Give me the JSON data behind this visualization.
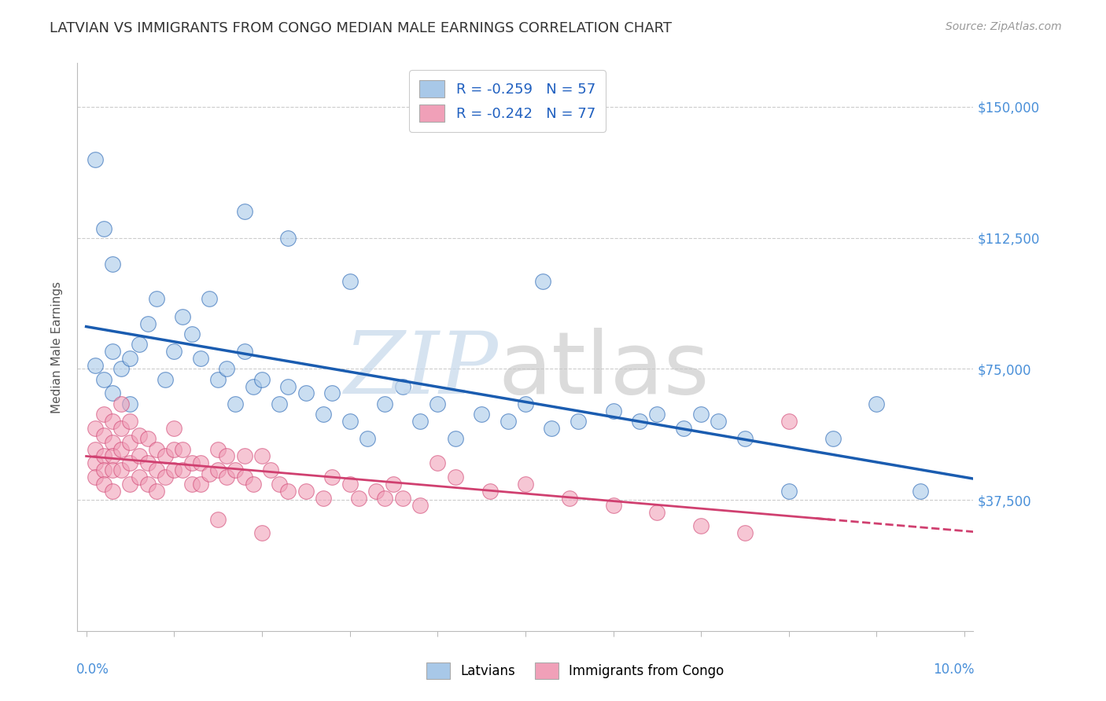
{
  "title": "LATVIAN VS IMMIGRANTS FROM CONGO MEDIAN MALE EARNINGS CORRELATION CHART",
  "source": "Source: ZipAtlas.com",
  "ylabel": "Median Male Earnings",
  "ylim": [
    0,
    162500
  ],
  "xlim": [
    0.0,
    0.101
  ],
  "legend_latvians": "R = -0.259   N = 57",
  "legend_congo": "R = -0.242   N = 77",
  "color_latvian": "#a8c8e8",
  "color_congo": "#f0a0b8",
  "color_latvian_line": "#1a5cb0",
  "color_congo_line": "#d04070",
  "ytick_vals": [
    0,
    37500,
    75000,
    112500,
    150000
  ],
  "ytick_labels": [
    "",
    "$37,500",
    "$75,000",
    "$112,500",
    "$150,000"
  ],
  "lv_x": [
    0.001,
    0.002,
    0.003,
    0.003,
    0.004,
    0.005,
    0.005,
    0.006,
    0.007,
    0.008,
    0.009,
    0.01,
    0.011,
    0.012,
    0.013,
    0.014,
    0.015,
    0.016,
    0.017,
    0.018,
    0.019,
    0.02,
    0.022,
    0.023,
    0.025,
    0.027,
    0.028,
    0.03,
    0.032,
    0.034,
    0.036,
    0.038,
    0.04,
    0.042,
    0.045,
    0.048,
    0.05,
    0.053,
    0.056,
    0.06,
    0.063,
    0.065,
    0.068,
    0.07,
    0.072,
    0.075,
    0.08,
    0.085,
    0.09,
    0.095,
    0.001,
    0.002,
    0.003,
    0.018,
    0.023,
    0.03,
    0.052
  ],
  "lv_y": [
    76000,
    72000,
    80000,
    68000,
    75000,
    78000,
    65000,
    82000,
    88000,
    95000,
    72000,
    80000,
    90000,
    85000,
    78000,
    95000,
    72000,
    75000,
    65000,
    80000,
    70000,
    72000,
    65000,
    70000,
    68000,
    62000,
    68000,
    60000,
    55000,
    65000,
    70000,
    60000,
    65000,
    55000,
    62000,
    60000,
    65000,
    58000,
    60000,
    63000,
    60000,
    62000,
    58000,
    62000,
    60000,
    55000,
    40000,
    55000,
    65000,
    40000,
    135000,
    115000,
    105000,
    120000,
    112500,
    100000,
    100000
  ],
  "cg_x": [
    0.001,
    0.001,
    0.001,
    0.001,
    0.002,
    0.002,
    0.002,
    0.002,
    0.002,
    0.003,
    0.003,
    0.003,
    0.003,
    0.003,
    0.004,
    0.004,
    0.004,
    0.004,
    0.005,
    0.005,
    0.005,
    0.005,
    0.006,
    0.006,
    0.006,
    0.007,
    0.007,
    0.007,
    0.008,
    0.008,
    0.008,
    0.009,
    0.009,
    0.01,
    0.01,
    0.01,
    0.011,
    0.011,
    0.012,
    0.012,
    0.013,
    0.013,
    0.014,
    0.015,
    0.015,
    0.016,
    0.016,
    0.017,
    0.018,
    0.018,
    0.019,
    0.02,
    0.021,
    0.022,
    0.023,
    0.025,
    0.027,
    0.028,
    0.03,
    0.031,
    0.033,
    0.034,
    0.035,
    0.036,
    0.038,
    0.04,
    0.042,
    0.046,
    0.05,
    0.055,
    0.06,
    0.065,
    0.07,
    0.075,
    0.08,
    0.015,
    0.02
  ],
  "cg_y": [
    58000,
    52000,
    48000,
    44000,
    62000,
    56000,
    50000,
    46000,
    42000,
    60000,
    54000,
    50000,
    46000,
    40000,
    65000,
    58000,
    52000,
    46000,
    60000,
    54000,
    48000,
    42000,
    56000,
    50000,
    44000,
    55000,
    48000,
    42000,
    52000,
    46000,
    40000,
    50000,
    44000,
    58000,
    52000,
    46000,
    52000,
    46000,
    48000,
    42000,
    48000,
    42000,
    45000,
    52000,
    46000,
    50000,
    44000,
    46000,
    50000,
    44000,
    42000,
    50000,
    46000,
    42000,
    40000,
    40000,
    38000,
    44000,
    42000,
    38000,
    40000,
    38000,
    42000,
    38000,
    36000,
    48000,
    44000,
    40000,
    42000,
    38000,
    36000,
    34000,
    30000,
    28000,
    60000,
    32000,
    28000
  ]
}
